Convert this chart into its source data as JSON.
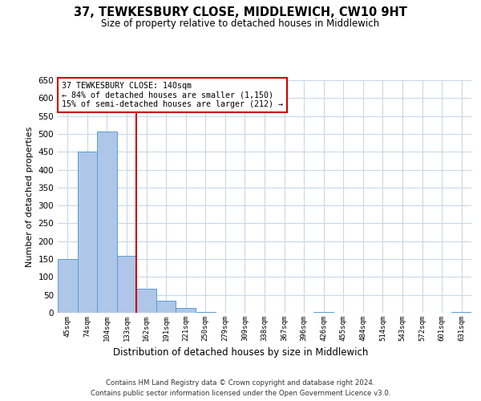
{
  "title": "37, TEWKESBURY CLOSE, MIDDLEWICH, CW10 9HT",
  "subtitle": "Size of property relative to detached houses in Middlewich",
  "xlabel": "Distribution of detached houses by size in Middlewich",
  "ylabel": "Number of detached properties",
  "footer_line1": "Contains HM Land Registry data © Crown copyright and database right 2024.",
  "footer_line2": "Contains public sector information licensed under the Open Government Licence v3.0.",
  "bin_labels": [
    "45sqm",
    "74sqm",
    "104sqm",
    "133sqm",
    "162sqm",
    "191sqm",
    "221sqm",
    "250sqm",
    "279sqm",
    "309sqm",
    "338sqm",
    "367sqm",
    "396sqm",
    "426sqm",
    "455sqm",
    "484sqm",
    "514sqm",
    "543sqm",
    "572sqm",
    "601sqm",
    "631sqm"
  ],
  "bar_values": [
    150,
    450,
    507,
    160,
    67,
    33,
    13,
    2,
    0,
    0,
    0,
    0,
    0,
    2,
    0,
    0,
    0,
    0,
    0,
    0,
    2
  ],
  "bar_color": "#aec6e8",
  "bar_edge_color": "#5b9bd5",
  "vline_color": "#cc0000",
  "annotation_title": "37 TEWKESBURY CLOSE: 140sqm",
  "annotation_line1": "← 84% of detached houses are smaller (1,150)",
  "annotation_line2": "15% of semi-detached houses are larger (212) →",
  "annotation_box_color": "#cc0000",
  "ylim": [
    0,
    650
  ],
  "yticks": [
    0,
    50,
    100,
    150,
    200,
    250,
    300,
    350,
    400,
    450,
    500,
    550,
    600,
    650
  ],
  "background_color": "#ffffff",
  "grid_color": "#c8d8e8"
}
